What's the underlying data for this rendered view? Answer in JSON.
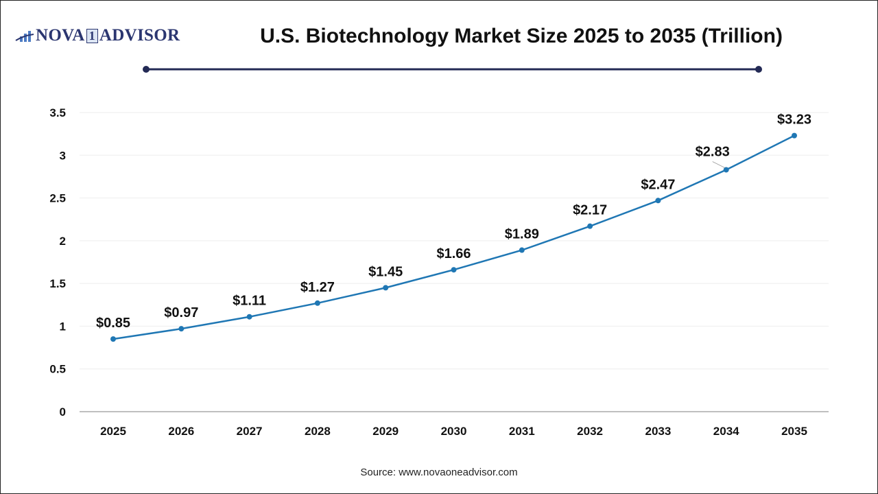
{
  "logo": {
    "left": "NOVA",
    "one": "1",
    "right": "ADVISOR",
    "icon": "bar-chart-swoosh-icon"
  },
  "title": "U.S. Biotechnology Market Size 2025 to 2035 (Trillion)",
  "source": "Source: www.novaoneadvisor.com",
  "colors": {
    "line": "#1f77b4",
    "title_rule": "#232a55",
    "grid": "#eeeeee",
    "axis": "#bfbfbf",
    "logo": "#2b3670"
  },
  "chart_data": {
    "type": "line",
    "title": "U.S. Biotechnology Market Size 2025 to 2035 (Trillion)",
    "xlabel": "",
    "ylabel": "",
    "categories": [
      "2025",
      "2026",
      "2027",
      "2028",
      "2029",
      "2030",
      "2031",
      "2032",
      "2033",
      "2034",
      "2035"
    ],
    "series": [
      {
        "name": "U.S. Biotechnology Market Size",
        "values": [
          0.85,
          0.97,
          1.11,
          1.27,
          1.45,
          1.66,
          1.89,
          2.17,
          2.47,
          2.83,
          3.23
        ]
      }
    ],
    "data_labels": [
      "$0.85",
      "$0.97",
      "$1.11",
      "$1.27",
      "$1.45",
      "$1.66",
      "$1.89",
      "$2.17",
      "$2.47",
      "$2.83",
      "$3.23"
    ],
    "ylim": [
      0,
      3.5
    ],
    "yticks": [
      0,
      0.5,
      1,
      1.5,
      2,
      2.5,
      3,
      3.5
    ],
    "ytick_labels": [
      "0",
      "0.5",
      "1",
      "1.5",
      "2",
      "2.5",
      "3",
      "3.5"
    ],
    "grid": true,
    "legend": "none"
  }
}
